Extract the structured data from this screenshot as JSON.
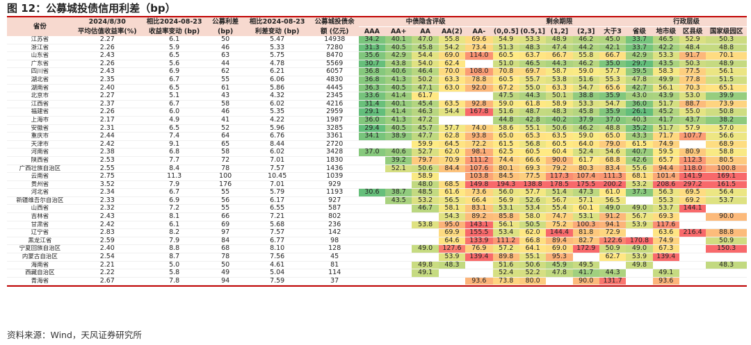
{
  "title": "图 12：公募城投债信用利差（bp）",
  "source": "资料来源：Wind，天风证券研究所",
  "headers": {
    "group_row": [
      "省份",
      "2024/8/30",
      "相比2024-08-23",
      "公募利差",
      "相比2024-08-23",
      "公募城投债余",
      "中债隐含评级",
      "剩余期限",
      "行政层级"
    ],
    "sub_row": [
      "平均估值收益率(%)",
      "收益率变动 (bp)",
      "(bp)",
      "利差变动 (bp)",
      "额 (亿元)",
      "AAA",
      "AA+",
      "AA",
      "AA(2)",
      "AA-",
      "(0,0.5]",
      "(0.5,1]",
      "(1,2]",
      "(2,3]",
      "大于3",
      "省级",
      "地市级",
      "区县级",
      "国家级园区"
    ]
  },
  "rows": [
    {
      "p": "江苏省",
      "c": [
        "2.27",
        "6.1",
        "50",
        "5.47",
        "14938",
        "34.2",
        "40.1",
        "47.0",
        "55.8",
        "69.6",
        "54.9",
        "53.3",
        "48.9",
        "46.2",
        "45.0",
        "33.7",
        "46.5",
        "52.9",
        "50.3"
      ]
    },
    {
      "p": "浙江省",
      "c": [
        "2.26",
        "5.9",
        "46",
        "5.33",
        "7280",
        "31.3",
        "40.5",
        "45.8",
        "54.2",
        "73.4",
        "51.3",
        "48.3",
        "47.4",
        "44.2",
        "42.1",
        "33.7",
        "42.2",
        "48.4",
        "48.8"
      ]
    },
    {
      "p": "山东省",
      "c": [
        "2.43",
        "6.5",
        "63",
        "5.75",
        "8470",
        "35.6",
        "42.9",
        "54.4",
        "69.0",
        "114.0",
        "60.5",
        "63.7",
        "66.7",
        "55.8",
        "66.7",
        "42.9",
        "53.3",
        "91.7",
        "70.1"
      ]
    },
    {
      "p": "广东省",
      "c": [
        "2.26",
        "5.6",
        "44",
        "4.78",
        "5569",
        "30.7",
        "43.8",
        "54.0",
        "62.4",
        "",
        "51.0",
        "46.5",
        "44.3",
        "46.2",
        "35.0",
        "29.7",
        "43.5",
        "50.3",
        "48.9"
      ]
    },
    {
      "p": "四川省",
      "c": [
        "2.43",
        "6.9",
        "62",
        "6.21",
        "6057",
        "36.8",
        "40.6",
        "46.4",
        "70.0",
        "108.0",
        "70.8",
        "69.7",
        "58.7",
        "59.0",
        "57.7",
        "39.5",
        "58.3",
        "77.5",
        "56.1"
      ]
    },
    {
      "p": "湖北省",
      "c": [
        "2.35",
        "6.7",
        "55",
        "6.06",
        "4830",
        "36.8",
        "41.3",
        "50.2",
        "63.3",
        "78.8",
        "60.5",
        "55.7",
        "53.8",
        "51.6",
        "55.3",
        "47.8",
        "49.9",
        "77.8",
        "51.5"
      ]
    },
    {
      "p": "湖南省",
      "c": [
        "2.40",
        "6.5",
        "61",
        "5.86",
        "4445",
        "36.3",
        "40.5",
        "47.1",
        "63.0",
        "92.0",
        "67.2",
        "55.0",
        "63.3",
        "54.7",
        "65.6",
        "42.7",
        "56.1",
        "70.3",
        "65.1"
      ]
    },
    {
      "p": "北京市",
      "c": [
        "2.27",
        "5.1",
        "43",
        "4.32",
        "2345",
        "33.6",
        "41.4",
        "61.7",
        "",
        "",
        "47.5",
        "44.3",
        "50.1",
        "38.8",
        "35.9",
        "43.0",
        "43.9",
        "53.0",
        "39.9"
      ]
    },
    {
      "p": "江西省",
      "c": [
        "2.37",
        "6.7",
        "58",
        "6.02",
        "4216",
        "31.4",
        "40.1",
        "45.4",
        "63.5",
        "92.8",
        "59.0",
        "61.8",
        "58.9",
        "53.3",
        "54.7",
        "36.0",
        "51.7",
        "88.7",
        "73.9"
      ]
    },
    {
      "p": "福建省",
      "c": [
        "2.26",
        "6.0",
        "46",
        "5.35",
        "2959",
        "29.1",
        "41.4",
        "46.3",
        "54.4",
        "167.8",
        "51.6",
        "48.7",
        "48.3",
        "45.8",
        "35.9",
        "26.1",
        "45.2",
        "55.0",
        "50.8"
      ]
    },
    {
      "p": "上海市",
      "c": [
        "2.17",
        "4.9",
        "41",
        "4.22",
        "1987",
        "36.0",
        "41.3",
        "47.2",
        "",
        "",
        "44.8",
        "42.8",
        "40.2",
        "37.9",
        "37.0",
        "40.3",
        "41.7",
        "43.7",
        "38.2"
      ]
    },
    {
      "p": "安徽省",
      "c": [
        "2.31",
        "6.5",
        "52",
        "5.96",
        "3285",
        "29.4",
        "40.5",
        "45.7",
        "57.7",
        "74.0",
        "58.6",
        "55.1",
        "50.6",
        "46.2",
        "48.8",
        "35.2",
        "51.7",
        "57.9",
        "57.0"
      ]
    },
    {
      "p": "重庆市",
      "c": [
        "2.44",
        "7.4",
        "64",
        "6.76",
        "3361",
        "34.1",
        "38.9",
        "47.7",
        "62.8",
        "93.8",
        "65.0",
        "65.3",
        "63.5",
        "59.0",
        "65.0",
        "43.3",
        "71.7",
        "107.7",
        "56.6"
      ]
    },
    {
      "p": "天津市",
      "c": [
        "2.42",
        "9.1",
        "65",
        "8.44",
        "2720",
        "",
        "",
        "59.9",
        "64.5",
        "72.2",
        "61.5",
        "56.8",
        "60.5",
        "64.0",
        "79.0",
        "61.5",
        "74.9",
        "",
        "68.9"
      ]
    },
    {
      "p": "河南省",
      "c": [
        "2.38",
        "6.8",
        "58",
        "6.02",
        "3428",
        "37.0",
        "40.6",
        "52.7",
        "62.0",
        "98.1",
        "62.5",
        "60.5",
        "60.4",
        "52.4",
        "54.6",
        "40.7",
        "59.5",
        "80.9",
        "58.8"
      ]
    },
    {
      "p": "陕西省",
      "c": [
        "2.53",
        "7.7",
        "72",
        "7.01",
        "1830",
        "",
        "39.2",
        "79.7",
        "70.9",
        "111.2",
        "74.4",
        "66.6",
        "90.0",
        "61.7",
        "68.8",
        "42.6",
        "65.7",
        "112.3",
        "80.5"
      ]
    },
    {
      "p": "广西壮族自治区",
      "c": [
        "2.55",
        "8.4",
        "78",
        "7.57",
        "1436",
        "",
        "52.1",
        "50.6",
        "84.4",
        "107.6",
        "80.1",
        "69.3",
        "79.2",
        "80.3",
        "83.4",
        "55.6",
        "94.4",
        "118.0",
        "100.8"
      ]
    },
    {
      "p": "云南省",
      "c": [
        "2.75",
        "11.3",
        "100",
        "10.45",
        "1039",
        "",
        "",
        "58.9",
        "",
        "103.8",
        "84.5",
        "77.5",
        "117.3",
        "107.4",
        "111.3",
        "68.1",
        "101.4",
        "141.9",
        "169.1"
      ]
    },
    {
      "p": "贵州省",
      "c": [
        "3.52",
        "7.9",
        "176",
        "7.01",
        "929",
        "",
        "",
        "48.0",
        "68.5",
        "149.8",
        "194.3",
        "138.8",
        "178.5",
        "175.5",
        "200.2",
        "53.2",
        "208.6",
        "297.2",
        "161.5"
      ]
    },
    {
      "p": "河北省",
      "c": [
        "2.34",
        "6.7",
        "55",
        "5.79",
        "1193",
        "30.6",
        "38.7",
        "48.5",
        "61.6",
        "73.6",
        "56.0",
        "57.7",
        "51.4",
        "47.3",
        "61.0",
        "37.3",
        "56.3",
        "69.5",
        "56.4"
      ]
    },
    {
      "p": "新疆维吾尔自治区",
      "c": [
        "2.33",
        "6.9",
        "56",
        "6.17",
        "927",
        "",
        "43.5",
        "53.2",
        "56.5",
        "66.4",
        "56.9",
        "52.6",
        "56.7",
        "57.1",
        "56.5",
        "",
        "55.3",
        "69.2",
        "53.7"
      ]
    },
    {
      "p": "山西省",
      "c": [
        "2.32",
        "7.2",
        "55",
        "6.55",
        "587",
        "",
        "",
        "46.7",
        "58.1",
        "83.1",
        "53.1",
        "53.4",
        "55.4",
        "60.1",
        "49.0",
        "49.0",
        "53.7",
        "144.1",
        ""
      ]
    },
    {
      "p": "吉林省",
      "c": [
        "2.43",
        "8.1",
        "66",
        "7.21",
        "802",
        "",
        "",
        "",
        "54.3",
        "89.2",
        "85.8",
        "58.0",
        "74.7",
        "53.1",
        "91.2",
        "56.7",
        "69.3",
        "",
        "90.0"
      ]
    },
    {
      "p": "甘肃省",
      "c": [
        "2.42",
        "6.1",
        "69",
        "5.68",
        "236",
        "",
        "",
        "53.8",
        "95.0",
        "143.1",
        "56.1",
        "50.5",
        "75.2",
        "100.3",
        "94.1",
        "53.9",
        "117.6",
        "",
        ""
      ]
    },
    {
      "p": "辽宁省",
      "c": [
        "2.83",
        "8.2",
        "97",
        "7.57",
        "142",
        "",
        "",
        "",
        "69.9",
        "155.5",
        "53.4",
        "62.0",
        "144.4",
        "81.8",
        "72.9",
        "",
        "63.6",
        "216.4",
        "88.8"
      ]
    },
    {
      "p": "黑龙江省",
      "c": [
        "2.59",
        "7.9",
        "84",
        "6.77",
        "98",
        "",
        "",
        "",
        "64.6",
        "133.9",
        "111.2",
        "66.8",
        "89.4",
        "82.7",
        "122.6",
        "170.8",
        "74.9",
        "",
        "50.9"
      ]
    },
    {
      "p": "宁夏回族自治区",
      "c": [
        "2.40",
        "8.8",
        "68",
        "8.10",
        "128",
        "",
        "",
        "49.0",
        "127.6",
        "76.9",
        "57.2",
        "64.1",
        "69.0",
        "172.9",
        "50.9",
        "49.0",
        "67.3",
        "",
        "150.3"
      ]
    },
    {
      "p": "内蒙古自治区",
      "c": [
        "2.54",
        "8.7",
        "78",
        "7.56",
        "45",
        "",
        "",
        "",
        "53.9",
        "139.4",
        "89.8",
        "55.1",
        "95.3",
        "",
        "62.7",
        "53.9",
        "139.4",
        "",
        ""
      ]
    },
    {
      "p": "海南省",
      "c": [
        "2.21",
        "5.0",
        "50",
        "4.61",
        "81",
        "",
        "",
        "49.8",
        "48.3",
        "",
        "51.6",
        "50.6",
        "45.9",
        "49.5",
        "",
        "49.8",
        "",
        "",
        "48.3"
      ]
    },
    {
      "p": "西藏自治区",
      "c": [
        "2.22",
        "5.8",
        "49",
        "5.04",
        "114",
        "",
        "",
        "49.1",
        "",
        "",
        "52.4",
        "52.2",
        "47.8",
        "41.7",
        "44.3",
        "",
        "49.1",
        "",
        ""
      ]
    },
    {
      "p": "青海省",
      "c": [
        "2.67",
        "7.8",
        "94",
        "7.59",
        "37",
        "",
        "",
        "",
        "",
        "93.6",
        "73.8",
        "80.0",
        "",
        "90.0",
        "131.7",
        "",
        "93.6",
        "",
        ""
      ]
    }
  ],
  "colors": {
    "title_bar": "#c00000",
    "header_bg": "#f7d9cf",
    "scale_low": "#63be7b",
    "scale_mid": "#ffeb84",
    "scale_high": "#f8696b"
  }
}
